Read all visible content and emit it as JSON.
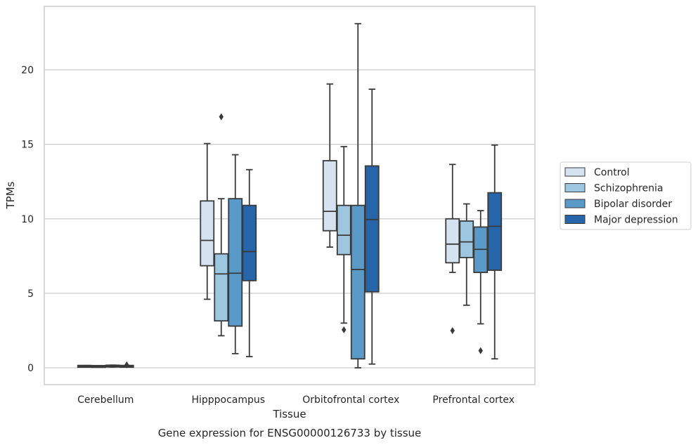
{
  "chart_data": {
    "type": "box",
    "title": "",
    "xlabel": "Tissue",
    "ylabel": "TPMs",
    "caption": "Gene expression for ENSG00000126733 by tissue",
    "ylim": [
      -1.1,
      24.3
    ],
    "yticks": [
      0,
      5,
      10,
      15,
      20
    ],
    "grid": "y",
    "legend_position": "right",
    "categories": [
      "Cerebellum",
      "Hipppocampus",
      "Orbitofrontal cortex",
      "Prefrontal cortex"
    ],
    "series": [
      {
        "name": "Control",
        "color": "#d5e3f1",
        "boxes": [
          {
            "whislo": 0.05,
            "q1": 0.07,
            "med": 0.1,
            "q3": 0.13,
            "whishi": 0.15,
            "fliers": []
          },
          {
            "whislo": 4.6,
            "q1": 6.85,
            "med": 8.55,
            "q3": 11.2,
            "whishi": 15.05,
            "fliers": []
          },
          {
            "whislo": 8.1,
            "q1": 9.2,
            "med": 10.5,
            "q3": 13.9,
            "whishi": 19.05,
            "fliers": []
          },
          {
            "whislo": 6.4,
            "q1": 7.05,
            "med": 8.3,
            "q3": 10.0,
            "whishi": 13.65,
            "fliers": [
              2.5
            ]
          }
        ]
      },
      {
        "name": "Schizophrenia",
        "color": "#9dc7e0",
        "boxes": [
          {
            "whislo": 0.04,
            "q1": 0.06,
            "med": 0.09,
            "q3": 0.12,
            "whishi": 0.14,
            "fliers": []
          },
          {
            "whislo": 2.15,
            "q1": 3.15,
            "med": 6.3,
            "q3": 7.65,
            "whishi": 11.35,
            "fliers": [
              16.85
            ]
          },
          {
            "whislo": 3.0,
            "q1": 7.6,
            "med": 8.9,
            "q3": 10.9,
            "whishi": 14.85,
            "fliers": [
              2.55
            ]
          },
          {
            "whislo": 4.2,
            "q1": 7.4,
            "med": 8.45,
            "q3": 9.85,
            "whishi": 11.0,
            "fliers": []
          }
        ]
      },
      {
        "name": "Bipolar disorder",
        "color": "#5a9ac9",
        "boxes": [
          {
            "whislo": 0.05,
            "q1": 0.07,
            "med": 0.1,
            "q3": 0.16,
            "whishi": 0.18,
            "fliers": []
          },
          {
            "whislo": 0.95,
            "q1": 2.8,
            "med": 6.35,
            "q3": 11.35,
            "whishi": 14.3,
            "fliers": []
          },
          {
            "whislo": 0.0,
            "q1": 0.6,
            "med": 6.6,
            "q3": 10.9,
            "whishi": 23.1,
            "fliers": []
          },
          {
            "whislo": 2.95,
            "q1": 6.4,
            "med": 7.95,
            "q3": 9.45,
            "whishi": 10.55,
            "fliers": [
              1.15
            ]
          }
        ]
      },
      {
        "name": "Major depression",
        "color": "#2665a9",
        "boxes": [
          {
            "whislo": 0.05,
            "q1": 0.07,
            "med": 0.1,
            "q3": 0.13,
            "whishi": 0.15,
            "fliers": [
              0.2
            ]
          },
          {
            "whislo": 0.75,
            "q1": 5.85,
            "med": 7.8,
            "q3": 10.9,
            "whishi": 13.3,
            "fliers": []
          },
          {
            "whislo": 0.25,
            "q1": 5.1,
            "med": 9.95,
            "q3": 13.55,
            "whishi": 18.7,
            "fliers": []
          },
          {
            "whislo": 0.6,
            "q1": 6.55,
            "med": 9.5,
            "q3": 11.75,
            "whishi": 14.95,
            "fliers": []
          }
        ]
      }
    ]
  }
}
